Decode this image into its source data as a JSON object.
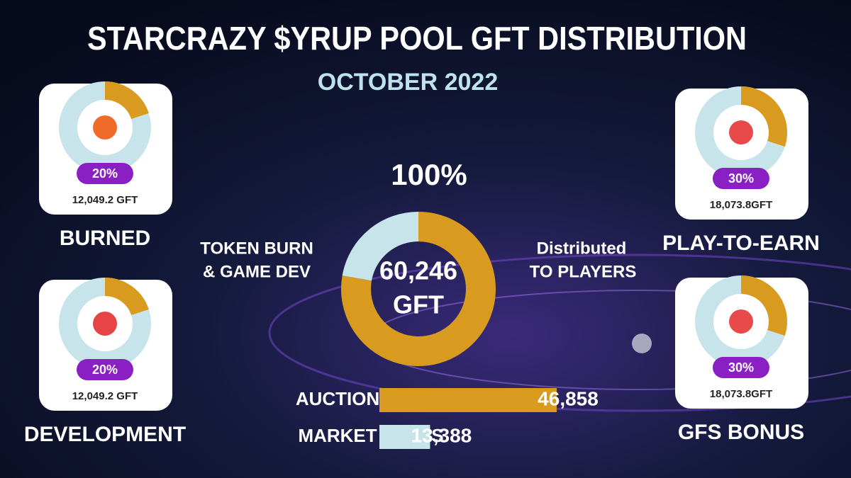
{
  "header": {
    "title": "STARCRAZY $YRUP POOL GFT DISTRIBUTION",
    "subtitle": "OCTOBER 2022"
  },
  "cards": [
    {
      "label": "BURNED",
      "percent": 20,
      "percent_label": "20%",
      "amount_label": "12,049.2 GFT"
    },
    {
      "label": "DEVELOPMENT",
      "percent": 20,
      "percent_label": "20%",
      "amount_label": "12,049.2 GFT"
    },
    {
      "label": "PLAY-TO-EARN",
      "percent": 30,
      "percent_label": "30%",
      "amount_label": "18,073.8GFT"
    },
    {
      "label": "GFS BONUS",
      "percent": 30,
      "percent_label": "30%",
      "amount_label": "18,073.8GFT"
    }
  ],
  "center": {
    "percent_label": "100%",
    "total_label": "60,246",
    "unit": "GFT",
    "left_label": [
      "TOKEN BURN",
      "& GAME DEV"
    ],
    "right_label": [
      "Distributed",
      "TO  PLAYERS"
    ]
  },
  "bars": {
    "categories": [
      "AUCTION SALES",
      "MARKET SALES"
    ],
    "values": [
      46858,
      13388
    ],
    "value_labels": [
      "46,858",
      "13,388"
    ],
    "colors": [
      "#d89b1f",
      "#c7e4ea"
    ]
  }
}
